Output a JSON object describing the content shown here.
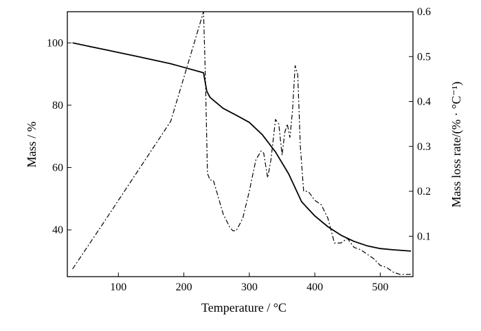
{
  "chart_data": {
    "type": "line",
    "xlabel": "Temperature / °C",
    "ylabel": "Mass / %",
    "y2label": "Mass loss rate/(% · °C⁻¹)",
    "xlim": [
      22,
      550
    ],
    "ylim": [
      25,
      110
    ],
    "y2lim": [
      0.01,
      0.6
    ],
    "xticks": [
      100,
      200,
      300,
      400,
      500
    ],
    "yticks": [
      40,
      60,
      80,
      100
    ],
    "y2ticks": [
      0.1,
      0.2,
      0.3,
      0.4,
      0.5,
      0.6
    ],
    "grid": false,
    "legend": "none",
    "series": [
      {
        "style": "solid",
        "axis": "left",
        "x": [
          30,
          80,
          130,
          180,
          230,
          235,
          240,
          260,
          280,
          300,
          320,
          340,
          360,
          380,
          400,
          420,
          440,
          460,
          480,
          500,
          520,
          547
        ],
        "y": [
          100,
          97.8,
          95.6,
          93.3,
          90.4,
          84.5,
          82.5,
          79,
          76.8,
          74.5,
          70.5,
          65,
          58,
          49,
          44.5,
          41,
          38.3,
          36.3,
          34.9,
          34,
          33.6,
          33.2
        ]
      },
      {
        "style": "dash-dot",
        "axis": "right",
        "x": [
          30,
          80,
          130,
          180,
          230,
          233,
          236,
          240,
          245,
          250,
          260,
          270,
          275,
          280,
          290,
          300,
          310,
          318,
          322,
          328,
          333,
          340,
          345,
          350,
          354,
          358,
          362,
          366,
          370,
          374,
          378,
          383,
          390,
          400,
          410,
          420,
          430,
          440,
          450,
          460,
          470,
          480,
          490,
          500,
          510,
          520,
          530,
          547
        ],
        "y": [
          0.027,
          0.136,
          0.246,
          0.356,
          0.6,
          0.45,
          0.24,
          0.225,
          0.225,
          0.2,
          0.15,
          0.12,
          0.112,
          0.112,
          0.14,
          0.2,
          0.27,
          0.29,
          0.285,
          0.23,
          0.27,
          0.36,
          0.35,
          0.28,
          0.33,
          0.35,
          0.32,
          0.38,
          0.48,
          0.46,
          0.3,
          0.2,
          0.2,
          0.18,
          0.17,
          0.14,
          0.085,
          0.085,
          0.095,
          0.075,
          0.07,
          0.06,
          0.05,
          0.035,
          0.03,
          0.02,
          0.015,
          0.015
        ]
      }
    ]
  }
}
